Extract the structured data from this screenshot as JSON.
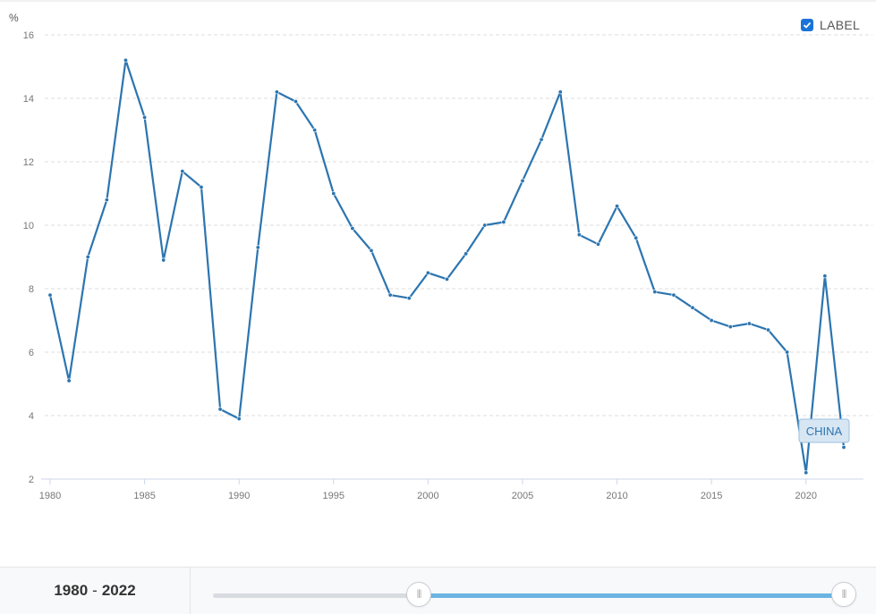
{
  "chart_data": {
    "type": "line",
    "ylabel": "%",
    "ylim": [
      2,
      16
    ],
    "yticks": [
      "16",
      "14",
      "12",
      "10",
      "8",
      "6",
      "4",
      "2"
    ],
    "xlim": [
      1980,
      2022
    ],
    "xticks": [
      "1980",
      "1985",
      "1990",
      "1995",
      "2000",
      "2005",
      "2010",
      "2015",
      "2020"
    ],
    "grid": true,
    "series": [
      {
        "name": "CHINA",
        "color": "#2c75b0",
        "x": [
          1980,
          1981,
          1982,
          1983,
          1984,
          1985,
          1986,
          1987,
          1988,
          1989,
          1990,
          1991,
          1992,
          1993,
          1994,
          1995,
          1996,
          1997,
          1998,
          1999,
          2000,
          2001,
          2002,
          2003,
          2004,
          2005,
          2006,
          2007,
          2008,
          2009,
          2010,
          2011,
          2012,
          2013,
          2014,
          2015,
          2016,
          2017,
          2018,
          2019,
          2020,
          2021,
          2022
        ],
        "values": [
          7.8,
          5.1,
          9.0,
          10.8,
          15.2,
          13.4,
          8.9,
          11.7,
          11.2,
          4.2,
          3.9,
          9.3,
          14.2,
          13.9,
          13.0,
          11.0,
          9.9,
          9.2,
          7.8,
          7.7,
          8.5,
          8.3,
          9.1,
          10.0,
          10.1,
          11.4,
          12.7,
          14.2,
          9.7,
          9.4,
          10.6,
          9.6,
          7.9,
          7.8,
          7.4,
          7.0,
          6.8,
          6.9,
          6.7,
          6.0,
          2.2,
          8.4,
          3.0
        ]
      }
    ]
  },
  "controls": {
    "label_toggle": "LABEL",
    "label_checked": true,
    "range_start": "1980",
    "range_end": "2022",
    "range_separator": "-"
  }
}
